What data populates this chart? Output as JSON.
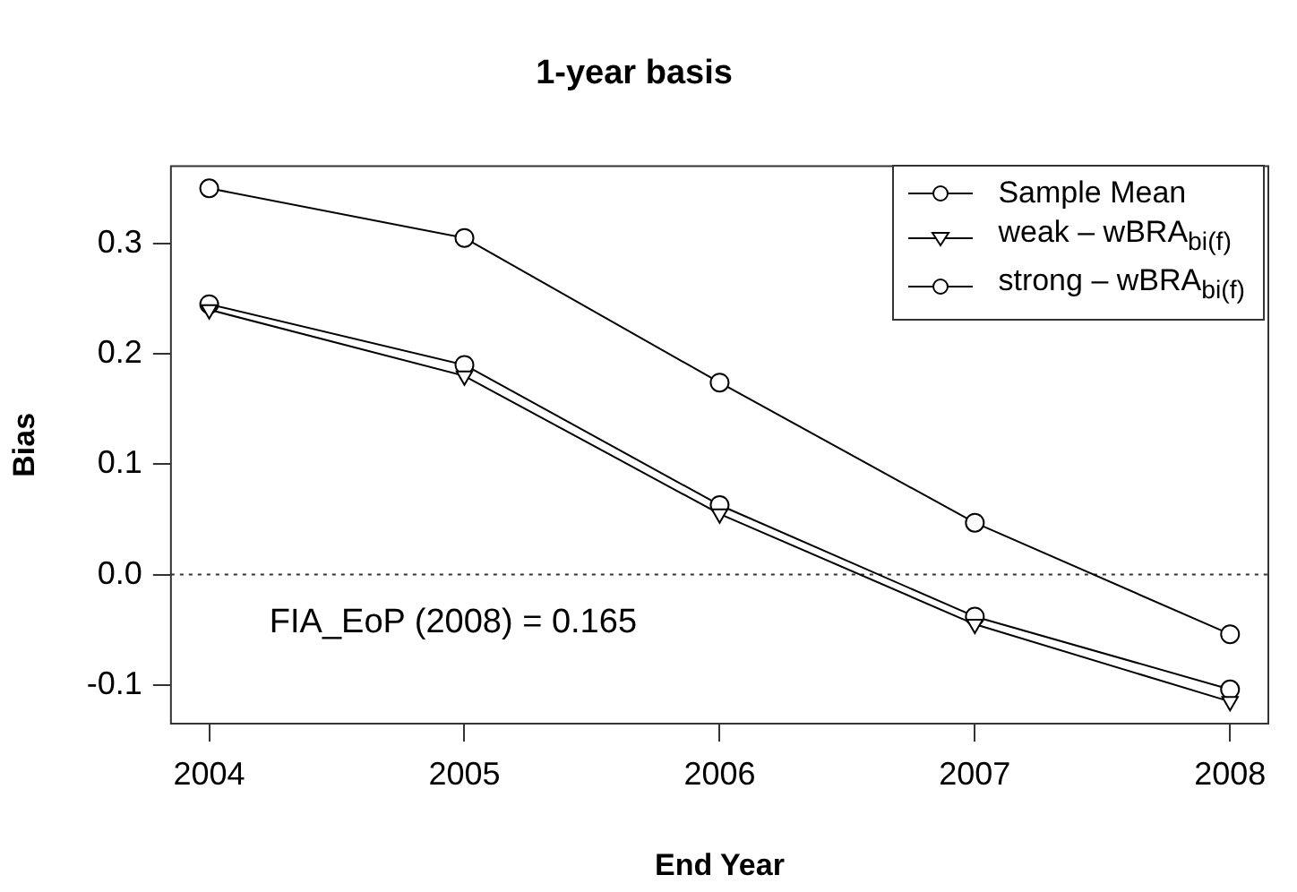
{
  "chart_data": {
    "type": "line",
    "title": "1-year basis",
    "xlabel": "End Year",
    "ylabel": "Bias",
    "x": [
      2004,
      2005,
      2006,
      2007,
      2008
    ],
    "series": [
      {
        "name": "Sample Mean",
        "color": "#000000",
        "marker": "circle",
        "values": [
          0.35,
          0.305,
          0.174,
          0.047,
          -0.054
        ]
      },
      {
        "name": "weak – wBRA$_{bi(f)}$",
        "color": "#000000",
        "marker": "triangle",
        "values": [
          0.24,
          0.18,
          0.055,
          -0.045,
          -0.115
        ]
      },
      {
        "name": "strong – wBRA$_{bi(f)}$",
        "color": "#000000",
        "marker": "circle",
        "values": [
          0.245,
          0.19,
          0.063,
          -0.038,
          -0.104
        ]
      }
    ],
    "xlim": [
      2003.85,
      2008.15
    ],
    "xticks": [
      2004,
      2005,
      2006,
      2007,
      2008
    ],
    "ylim": [
      -0.135,
      0.37
    ],
    "yticks": [
      {
        "value": -0.1,
        "label": "-0.1"
      },
      {
        "value": 0,
        "label": "0.0"
      },
      {
        "value": 0.1,
        "label": "0.1"
      },
      {
        "value": 0.2,
        "label": "0.2"
      },
      {
        "value": 0.3,
        "label": "0.3"
      }
    ],
    "ref_lines": [
      {
        "axis": "y",
        "value": 0,
        "color": "#333333",
        "line_style": "dotted"
      }
    ],
    "annotations": [
      "FIA_EoP (2008) = 0.165"
    ],
    "grid": false,
    "legend": "top right",
    "line_style": "solid"
  }
}
